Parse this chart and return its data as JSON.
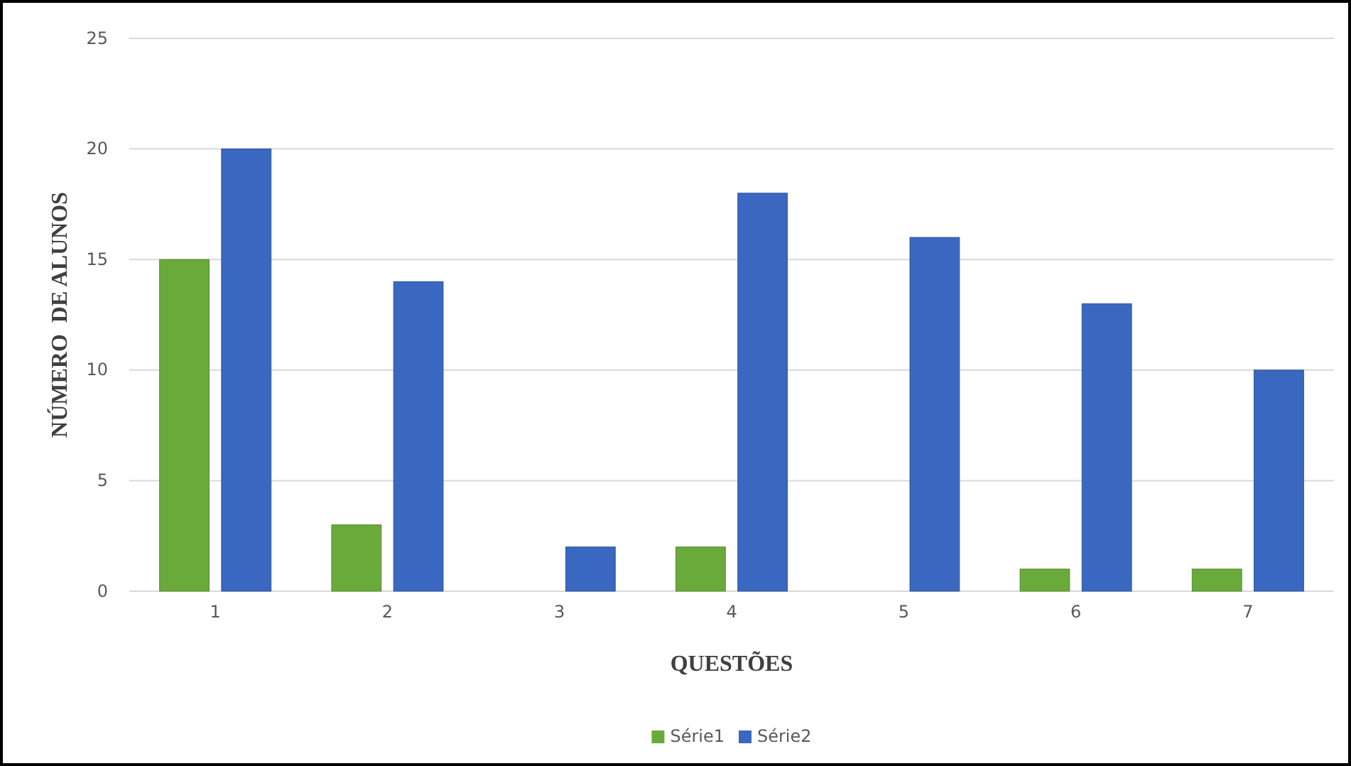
{
  "chart_data": {
    "type": "bar",
    "xlabel": "QUESTÕES",
    "ylabel": "NÚMERO  DE ALUNOS",
    "categories": [
      "1",
      "2",
      "3",
      "4",
      "5",
      "6",
      "7"
    ],
    "series": [
      {
        "name": "Série1",
        "color": "#6aaa3a",
        "values": [
          15,
          3,
          0,
          2,
          0,
          1,
          1
        ]
      },
      {
        "name": "Série2",
        "color": "#3a68c0",
        "values": [
          20,
          14,
          2,
          18,
          16,
          13,
          10
        ]
      }
    ],
    "ylim": [
      0,
      25
    ],
    "yticks": [
      0,
      5,
      10,
      15,
      20,
      25
    ],
    "grid": "y",
    "legend": "bottom"
  }
}
